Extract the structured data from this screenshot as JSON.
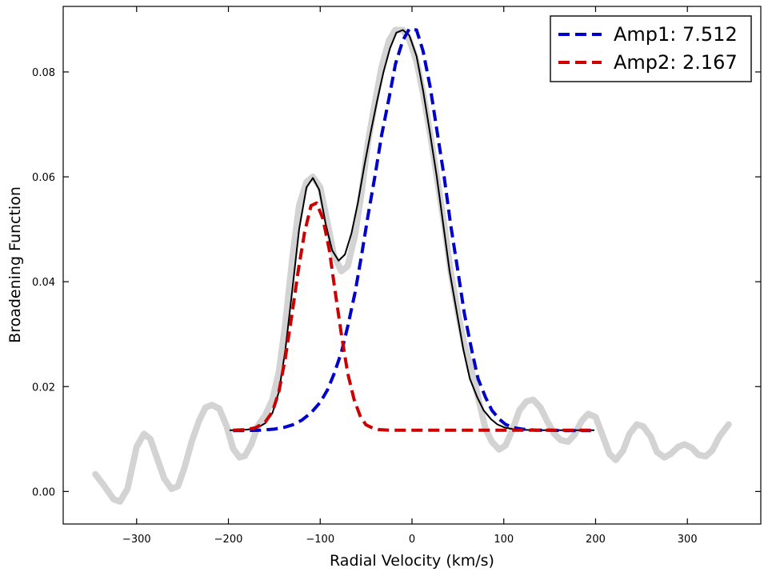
{
  "chart_data": {
    "type": "line",
    "xlabel": "Radial Velocity (km/s)",
    "ylabel": "Broadening Function",
    "xlim": [
      -380,
      380
    ],
    "ylim": [
      -0.0062,
      0.0925
    ],
    "x_ticks": [
      -300,
      -200,
      -100,
      0,
      100,
      200,
      300
    ],
    "x_tick_labels": [
      "−300",
      "−200",
      "−100",
      "0",
      "100",
      "200",
      "300"
    ],
    "y_ticks": [
      0.0,
      0.02,
      0.04,
      0.06,
      0.08
    ],
    "y_tick_labels": [
      "0.00",
      "0.02",
      "0.04",
      "0.06",
      "0.08"
    ],
    "grid": false,
    "legend_position": "top-right",
    "series": [
      {
        "key": "data",
        "color": "#d3d3d3",
        "style": "solid-thick",
        "x": [
          -345,
          -335,
          -325,
          -318,
          -310,
          -300,
          -292,
          -285,
          -278,
          -270,
          -262,
          -255,
          -248,
          -240,
          -232,
          -225,
          -218,
          -210,
          -202,
          -195,
          -188,
          -182,
          -175,
          -168,
          -160,
          -152,
          -145,
          -138,
          -130,
          -123,
          -115,
          -108,
          -100,
          -93,
          -85,
          -77,
          -70,
          -62,
          -55,
          -48,
          -40,
          -33,
          -25,
          -18,
          -10,
          -3,
          5,
          12,
          20,
          27,
          35,
          42,
          50,
          57,
          65,
          72,
          80,
          87,
          95,
          102,
          110,
          117,
          125,
          132,
          140,
          147,
          155,
          162,
          170,
          177,
          185,
          192,
          200,
          207,
          215,
          222,
          230,
          237,
          245,
          252,
          260,
          267,
          275,
          282,
          290,
          297,
          305,
          312,
          320,
          327,
          335,
          345
        ],
        "y": [
          0.0033,
          0.001,
          -0.0015,
          -0.0019,
          0.0005,
          0.0085,
          0.011,
          0.01,
          0.0065,
          0.0025,
          0.0005,
          0.001,
          0.0045,
          0.0095,
          0.0135,
          0.016,
          0.0165,
          0.0158,
          0.0125,
          0.0082,
          0.0065,
          0.0068,
          0.009,
          0.0125,
          0.0145,
          0.0175,
          0.0228,
          0.032,
          0.045,
          0.0545,
          0.059,
          0.06,
          0.058,
          0.052,
          0.045,
          0.042,
          0.043,
          0.049,
          0.057,
          0.0665,
          0.0745,
          0.081,
          0.086,
          0.088,
          0.088,
          0.0862,
          0.082,
          0.076,
          0.068,
          0.06,
          0.051,
          0.042,
          0.034,
          0.028,
          0.023,
          0.018,
          0.012,
          0.0095,
          0.008,
          0.0088,
          0.012,
          0.0155,
          0.0172,
          0.0175,
          0.016,
          0.0135,
          0.011,
          0.0098,
          0.0095,
          0.0108,
          0.0135,
          0.0148,
          0.0142,
          0.011,
          0.0072,
          0.006,
          0.0078,
          0.011,
          0.0128,
          0.0124,
          0.0105,
          0.0075,
          0.0065,
          0.0072,
          0.0085,
          0.009,
          0.0083,
          0.007,
          0.0067,
          0.0078,
          0.0105,
          0.0128
        ]
      },
      {
        "key": "fit-total",
        "color": "#000000",
        "style": "solid",
        "x": [
          -198,
          -190,
          -180,
          -170,
          -160,
          -152,
          -145,
          -138,
          -130,
          -123,
          -115,
          -108,
          -101,
          -94,
          -87,
          -80,
          -73,
          -66,
          -59,
          -52,
          -45,
          -38,
          -31,
          -24,
          -17,
          -10,
          -3,
          5,
          12,
          19,
          27,
          34,
          41,
          49,
          56,
          63,
          71,
          78,
          86,
          93,
          101,
          110,
          120,
          130,
          140,
          150,
          160,
          170,
          180,
          190,
          198
        ],
        "y": [
          0.0117,
          0.0117,
          0.0118,
          0.012,
          0.013,
          0.015,
          0.019,
          0.027,
          0.039,
          0.05,
          0.058,
          0.0598,
          0.0575,
          0.051,
          0.046,
          0.044,
          0.0452,
          0.0492,
          0.055,
          0.062,
          0.0685,
          0.0745,
          0.08,
          0.0845,
          0.0875,
          0.088,
          0.087,
          0.083,
          0.0765,
          0.069,
          0.06,
          0.051,
          0.042,
          0.034,
          0.027,
          0.0215,
          0.018,
          0.0155,
          0.0138,
          0.0128,
          0.0122,
          0.0119,
          0.0118,
          0.0117,
          0.0117,
          0.0117,
          0.0117,
          0.0117,
          0.0117,
          0.0117,
          0.0117
        ]
      },
      {
        "key": "amp1",
        "name": "Amp1: 7.512",
        "color": "#0000cc",
        "style": "dashed",
        "amplitude": 7.512,
        "x": [
          -195,
          -180,
          -165,
          -150,
          -140,
          -130,
          -120,
          -110,
          -100,
          -92,
          -85,
          -77,
          -70,
          -62,
          -55,
          -48,
          -40,
          -33,
          -25,
          -18,
          -10,
          -3,
          5,
          12,
          20,
          27,
          35,
          42,
          50,
          57,
          65,
          72,
          80,
          87,
          95,
          102,
          110,
          120,
          135,
          150,
          165,
          180,
          195
        ],
        "y": [
          0.0116,
          0.0116,
          0.0117,
          0.0119,
          0.0122,
          0.0127,
          0.0136,
          0.015,
          0.017,
          0.0194,
          0.0224,
          0.0265,
          0.0315,
          0.038,
          0.045,
          0.0525,
          0.0605,
          0.068,
          0.075,
          0.0815,
          0.086,
          0.0882,
          0.088,
          0.084,
          0.077,
          0.069,
          0.06,
          0.051,
          0.042,
          0.034,
          0.027,
          0.0215,
          0.018,
          0.0155,
          0.0138,
          0.0128,
          0.0122,
          0.0119,
          0.0117,
          0.0117,
          0.0116,
          0.0116,
          0.0116
        ]
      },
      {
        "key": "amp2",
        "name": "Amp2: 2.167",
        "color": "#cc0000",
        "style": "dashed",
        "amplitude": 2.167,
        "x": [
          -195,
          -180,
          -170,
          -160,
          -152,
          -145,
          -138,
          -131,
          -124,
          -117,
          -110,
          -104,
          -97,
          -90,
          -84,
          -77,
          -70,
          -63,
          -56,
          -50,
          -43,
          -36,
          -25,
          -10,
          10,
          40,
          80,
          120,
          160,
          195
        ],
        "y": [
          0.0117,
          0.0118,
          0.0122,
          0.0132,
          0.0152,
          0.019,
          0.0255,
          0.0335,
          0.042,
          0.0495,
          0.0545,
          0.055,
          0.052,
          0.046,
          0.0385,
          0.03,
          0.0225,
          0.0175,
          0.0142,
          0.0127,
          0.0121,
          0.0118,
          0.0117,
          0.0117,
          0.0117,
          0.0117,
          0.0117,
          0.0117,
          0.0117,
          0.0117
        ]
      }
    ]
  }
}
